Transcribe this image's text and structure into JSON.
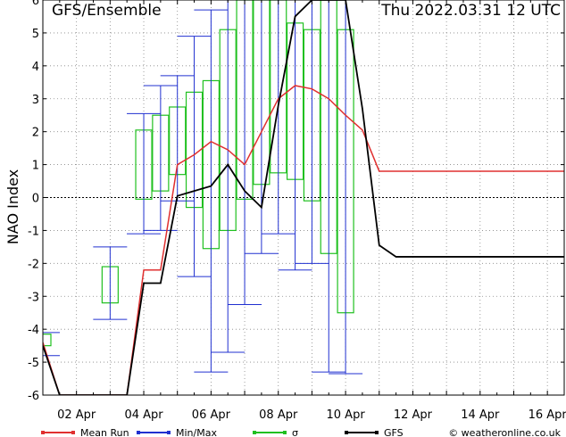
{
  "chart_data": {
    "type": "line",
    "title": "GFS/Ensemble",
    "run_label": "Thu 2022.03.31   12 UTC",
    "ylabel": "NAO Index",
    "ylim": [
      -6,
      6
    ],
    "yticks": [
      -6,
      -5,
      -4,
      -3,
      -2,
      -1,
      0,
      1,
      2,
      3,
      4,
      5,
      6
    ],
    "xlim": [
      0,
      15.5
    ],
    "xtick_labels": [
      {
        "x": 1,
        "label": "02 Apr"
      },
      {
        "x": 3,
        "label": "04 Apr"
      },
      {
        "x": 5,
        "label": "06 Apr"
      },
      {
        "x": 7,
        "label": "08 Apr"
      },
      {
        "x": 9,
        "label": "10 Apr"
      },
      {
        "x": 11,
        "label": "12 Apr"
      },
      {
        "x": 13,
        "label": "14 Apr"
      },
      {
        "x": 15,
        "label": "16 Apr"
      }
    ],
    "series": [
      {
        "name": "Mean Run",
        "color": "#e03030",
        "x": [
          0,
          0.5,
          1,
          1.5,
          2,
          2.5,
          3,
          3.5,
          4,
          4.5,
          5,
          5.5,
          6,
          6.5,
          7,
          7.5,
          8,
          8.5,
          9,
          9.5,
          10,
          10.5,
          11,
          11.5,
          12,
          12.5,
          13,
          13.5,
          14,
          14.5,
          15,
          15.5
        ],
        "values": [
          -4.4,
          -6,
          -6,
          -6,
          -6,
          -6,
          -2.2,
          -2.2,
          1,
          1.3,
          1.7,
          1.45,
          1,
          2,
          3,
          3.4,
          3.3,
          3,
          2.5,
          2.05,
          0.8,
          0.8,
          0.8,
          0.8,
          0.8,
          0.8,
          0.8,
          0.8,
          0.8,
          0.8,
          0.8,
          0.8
        ]
      },
      {
        "name": "GFS",
        "color": "#000000",
        "x": [
          0,
          0.5,
          1,
          1.5,
          2,
          2.5,
          3,
          3.5,
          4,
          4.5,
          5,
          5.5,
          6,
          6.5,
          7,
          7.5,
          8,
          8.5,
          9,
          9.5,
          10,
          10.5,
          11,
          11.5,
          12,
          12.5,
          13,
          13.5,
          14,
          14.5,
          15,
          15.5
        ],
        "values": [
          -4.5,
          -6,
          -6,
          -6,
          -6,
          -6,
          -2.6,
          -2.6,
          0.05,
          0.2,
          0.35,
          1,
          0.2,
          -0.3,
          2.8,
          5.5,
          6,
          6,
          6,
          2.7,
          -1.45,
          -1.8,
          -1.8,
          -1.8,
          -1.8,
          -1.8,
          -1.8,
          -1.8,
          -1.8,
          -1.8,
          -1.8,
          -1.8
        ]
      }
    ],
    "sigma": [
      {
        "x": 0,
        "low": -4.5,
        "high": -4.15
      },
      {
        "x": 2,
        "low": -3.2,
        "high": -2.1
      },
      {
        "x": 3,
        "low": -0.05,
        "high": 2.05
      },
      {
        "x": 3.5,
        "low": 0.2,
        "high": 2.5
      },
      {
        "x": 4,
        "low": 0.7,
        "high": 2.75
      },
      {
        "x": 4.5,
        "low": -0.3,
        "high": 3.2
      },
      {
        "x": 5,
        "low": -1.55,
        "high": 3.55
      },
      {
        "x": 5.5,
        "low": -1,
        "high": 5.1
      },
      {
        "x": 6,
        "low": -0.05,
        "high": 6
      },
      {
        "x": 6.5,
        "low": 0.4,
        "high": 6
      },
      {
        "x": 7,
        "low": 0.75,
        "high": 6
      },
      {
        "x": 7.5,
        "low": 0.55,
        "high": 5.3
      },
      {
        "x": 8,
        "low": -0.1,
        "high": 5.1
      },
      {
        "x": 8.5,
        "low": -1.7,
        "high": 6
      },
      {
        "x": 9,
        "low": -3.5,
        "high": 5.1
      }
    ],
    "minmax": [
      {
        "x": 0,
        "low": -4.8,
        "high": -4.1
      },
      {
        "x": 1,
        "low": -6,
        "high": -6
      },
      {
        "x": 2,
        "low": -3.7,
        "high": -1.5
      },
      {
        "x": 3,
        "low": -1.1,
        "high": 2.55
      },
      {
        "x": 3.5,
        "low": -1,
        "high": 3.4
      },
      {
        "x": 4,
        "low": -0.1,
        "high": 3.7
      },
      {
        "x": 4.5,
        "low": -2.4,
        "high": 4.9
      },
      {
        "x": 5,
        "low": -5.3,
        "high": 5.7
      },
      {
        "x": 5.5,
        "low": -4.7,
        "high": 6
      },
      {
        "x": 6,
        "low": -3.25,
        "high": 6
      },
      {
        "x": 6.5,
        "low": -1.7,
        "high": 6
      },
      {
        "x": 7,
        "low": -1.1,
        "high": 6
      },
      {
        "x": 7.5,
        "low": -2.2,
        "high": 6
      },
      {
        "x": 8,
        "low": -2,
        "high": 6
      },
      {
        "x": 8.5,
        "low": -5.3,
        "high": 6
      },
      {
        "x": 9,
        "low": -5.35,
        "high": 6
      }
    ],
    "legend": [
      {
        "label": "Mean Run",
        "color": "#e03030",
        "marker": "line"
      },
      {
        "label": "Min/Max",
        "color": "#2030d0",
        "marker": "line"
      },
      {
        "label": "σ",
        "color": "#20c020",
        "marker": "line"
      },
      {
        "label": "GFS",
        "color": "#000000",
        "marker": "line"
      }
    ],
    "credit": "© weatheronline.co.uk",
    "grid": true,
    "legend_placement": "bottom"
  }
}
